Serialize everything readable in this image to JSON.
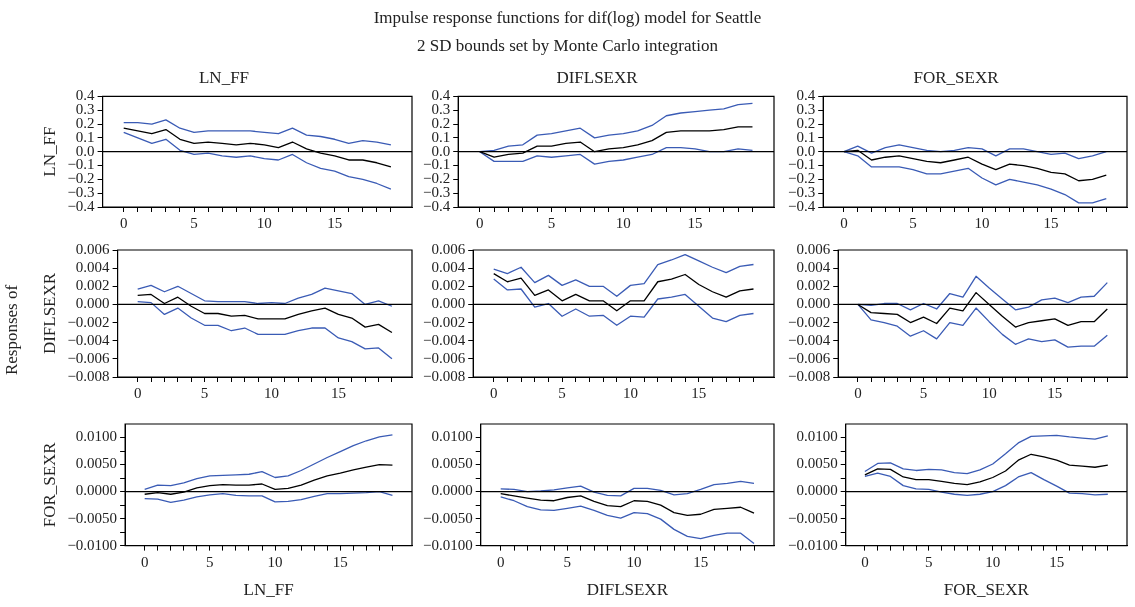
{
  "chart_data": [
    {
      "type": "line",
      "title": "LN_FF",
      "ylabel": "LN_FF",
      "annotations": [
        "Impulse response functions for dif(log) model for Seattle",
        "2 SD bounds set by Monte Carlo integration",
        "Responses of"
      ],
      "x": [
        0,
        1,
        2,
        3,
        4,
        5,
        6,
        7,
        8,
        9,
        10,
        11,
        12,
        13,
        14,
        15,
        16,
        17,
        18,
        19
      ],
      "xlim": [
        -1.5,
        20.5
      ],
      "xticks": [
        0,
        {
          "value": 1,
          "label": null
        },
        {
          "value": 2,
          "label": null
        },
        {
          "value": 3,
          "label": null
        },
        {
          "value": 4,
          "label": null
        },
        5,
        {
          "value": 6,
          "label": null
        },
        {
          "value": 7,
          "label": null
        },
        {
          "value": 8,
          "label": null
        },
        {
          "value": 9,
          "label": null
        },
        10,
        {
          "value": 11,
          "label": null
        },
        {
          "value": 12,
          "label": null
        },
        {
          "value": 13,
          "label": null
        },
        {
          "value": 14,
          "label": null
        },
        15,
        {
          "value": 16,
          "label": null
        },
        {
          "value": 17,
          "label": null
        },
        {
          "value": 18,
          "label": null
        },
        {
          "value": 19,
          "label": null
        }
      ],
      "ylim": [
        -0.4,
        0.4
      ],
      "yticks": [
        {
          "value": -0.4,
          "label": "−0.4"
        },
        {
          "value": -0.3,
          "label": "−0.3"
        },
        {
          "value": -0.2,
          "label": "−0.2"
        },
        {
          "value": -0.1,
          "label": "−0.1"
        },
        {
          "value": 0,
          "label": "0.0"
        },
        0.1,
        0.2,
        0.3,
        0.4
      ],
      "ref_lines": [
        {
          "axis": "y",
          "value": 0,
          "color": "#000000"
        }
      ],
      "series": [
        {
          "color": "#000000",
          "values": [
            0.17,
            0.15,
            0.13,
            0.16,
            0.09,
            0.06,
            0.07,
            0.06,
            0.05,
            0.06,
            0.05,
            0.03,
            0.07,
            0.02,
            -0.01,
            -0.03,
            -0.06,
            -0.06,
            -0.08,
            -0.11
          ]
        },
        {
          "color": "#3a5bb5",
          "values": [
            0.21,
            0.21,
            0.2,
            0.23,
            0.17,
            0.14,
            0.15,
            0.15,
            0.15,
            0.15,
            0.14,
            0.13,
            0.17,
            0.12,
            0.11,
            0.09,
            0.06,
            0.08,
            0.07,
            0.05
          ]
        },
        {
          "color": "#3a5bb5",
          "values": [
            0.14,
            0.1,
            0.06,
            0.09,
            0.01,
            -0.02,
            -0.01,
            -0.03,
            -0.04,
            -0.03,
            -0.05,
            -0.06,
            -0.02,
            -0.08,
            -0.12,
            -0.14,
            -0.18,
            -0.2,
            -0.23,
            -0.27
          ]
        }
      ]
    },
    {
      "type": "line",
      "title": "DIFLSEXR",
      "x": [
        0,
        1,
        2,
        3,
        4,
        5,
        6,
        7,
        8,
        9,
        10,
        11,
        12,
        13,
        14,
        15,
        16,
        17,
        18,
        19
      ],
      "xlim": [
        -1.5,
        20.5
      ],
      "xticks": [
        0,
        {
          "value": 1,
          "label": null
        },
        {
          "value": 2,
          "label": null
        },
        {
          "value": 3,
          "label": null
        },
        {
          "value": 4,
          "label": null
        },
        5,
        {
          "value": 6,
          "label": null
        },
        {
          "value": 7,
          "label": null
        },
        {
          "value": 8,
          "label": null
        },
        {
          "value": 9,
          "label": null
        },
        10,
        {
          "value": 11,
          "label": null
        },
        {
          "value": 12,
          "label": null
        },
        {
          "value": 13,
          "label": null
        },
        {
          "value": 14,
          "label": null
        },
        15,
        {
          "value": 16,
          "label": null
        },
        {
          "value": 17,
          "label": null
        },
        {
          "value": 18,
          "label": null
        },
        {
          "value": 19,
          "label": null
        }
      ],
      "ylim": [
        -0.4,
        0.4
      ],
      "yticks": [
        {
          "value": -0.4,
          "label": "−0.4"
        },
        {
          "value": -0.3,
          "label": "−0.3"
        },
        {
          "value": -0.2,
          "label": "−0.2"
        },
        {
          "value": -0.1,
          "label": "−0.1"
        },
        {
          "value": 0,
          "label": "0.0"
        },
        0.1,
        0.2,
        0.3,
        0.4
      ],
      "ref_lines": [
        {
          "axis": "y",
          "value": 0,
          "color": "#000000"
        }
      ],
      "series": [
        {
          "color": "#000000",
          "values": [
            0,
            -0.04,
            -0.02,
            -0.01,
            0.04,
            0.04,
            0.06,
            0.07,
            0.0,
            0.02,
            0.03,
            0.05,
            0.08,
            0.14,
            0.15,
            0.15,
            0.15,
            0.16,
            0.18,
            0.18
          ]
        },
        {
          "color": "#3a5bb5",
          "values": [
            0,
            0.01,
            0.04,
            0.05,
            0.12,
            0.13,
            0.15,
            0.17,
            0.1,
            0.12,
            0.13,
            0.15,
            0.19,
            0.26,
            0.28,
            0.29,
            0.3,
            0.31,
            0.34,
            0.35
          ]
        },
        {
          "color": "#3a5bb5",
          "values": [
            0,
            -0.07,
            -0.07,
            -0.07,
            -0.03,
            -0.04,
            -0.03,
            -0.02,
            -0.09,
            -0.07,
            -0.06,
            -0.04,
            -0.02,
            0.03,
            0.03,
            0.02,
            0.0,
            0.0,
            0.02,
            0.01
          ]
        }
      ]
    },
    {
      "type": "line",
      "title": "FOR_SEXR",
      "x": [
        0,
        1,
        2,
        3,
        4,
        5,
        6,
        7,
        8,
        9,
        10,
        11,
        12,
        13,
        14,
        15,
        16,
        17,
        18,
        19
      ],
      "xlim": [
        -1.5,
        20.5
      ],
      "xticks": [
        0,
        {
          "value": 1,
          "label": null
        },
        {
          "value": 2,
          "label": null
        },
        {
          "value": 3,
          "label": null
        },
        {
          "value": 4,
          "label": null
        },
        5,
        {
          "value": 6,
          "label": null
        },
        {
          "value": 7,
          "label": null
        },
        {
          "value": 8,
          "label": null
        },
        {
          "value": 9,
          "label": null
        },
        10,
        {
          "value": 11,
          "label": null
        },
        {
          "value": 12,
          "label": null
        },
        {
          "value": 13,
          "label": null
        },
        {
          "value": 14,
          "label": null
        },
        15,
        {
          "value": 16,
          "label": null
        },
        {
          "value": 17,
          "label": null
        },
        {
          "value": 18,
          "label": null
        },
        {
          "value": 19,
          "label": null
        }
      ],
      "ylim": [
        -0.4,
        0.4
      ],
      "yticks": [
        {
          "value": -0.4,
          "label": "−0.4"
        },
        {
          "value": -0.3,
          "label": "−0.3"
        },
        {
          "value": -0.2,
          "label": "−0.2"
        },
        {
          "value": -0.1,
          "label": "−0.1"
        },
        {
          "value": 0,
          "label": "0.0"
        },
        0.1,
        0.2,
        0.3,
        0.4
      ],
      "ref_lines": [
        {
          "axis": "y",
          "value": 0,
          "color": "#000000"
        }
      ],
      "series": [
        {
          "color": "#000000",
          "values": [
            0,
            0.01,
            -0.06,
            -0.04,
            -0.03,
            -0.05,
            -0.07,
            -0.08,
            -0.06,
            -0.04,
            -0.09,
            -0.13,
            -0.09,
            -0.1,
            -0.12,
            -0.15,
            -0.16,
            -0.21,
            -0.2,
            -0.17
          ]
        },
        {
          "color": "#3a5bb5",
          "values": [
            0,
            0.04,
            -0.01,
            0.03,
            0.05,
            0.03,
            0.01,
            0.0,
            0.01,
            0.03,
            0.02,
            -0.03,
            0.02,
            0.02,
            0.0,
            -0.02,
            -0.01,
            -0.05,
            -0.03,
            0.0
          ]
        },
        {
          "color": "#3a5bb5",
          "values": [
            0,
            -0.03,
            -0.11,
            -0.11,
            -0.11,
            -0.13,
            -0.16,
            -0.16,
            -0.14,
            -0.12,
            -0.19,
            -0.24,
            -0.2,
            -0.22,
            -0.24,
            -0.27,
            -0.31,
            -0.37,
            -0.37,
            -0.34
          ]
        }
      ]
    },
    {
      "type": "line",
      "ylabel": "DIFLSEXR",
      "x": [
        0,
        1,
        2,
        3,
        4,
        5,
        6,
        7,
        8,
        9,
        10,
        11,
        12,
        13,
        14,
        15,
        16,
        17,
        18,
        19
      ],
      "xlim": [
        -1.5,
        20.5
      ],
      "xticks": [
        0,
        {
          "value": 1,
          "label": null
        },
        {
          "value": 2,
          "label": null
        },
        {
          "value": 3,
          "label": null
        },
        {
          "value": 4,
          "label": null
        },
        5,
        {
          "value": 6,
          "label": null
        },
        {
          "value": 7,
          "label": null
        },
        {
          "value": 8,
          "label": null
        },
        {
          "value": 9,
          "label": null
        },
        10,
        {
          "value": 11,
          "label": null
        },
        {
          "value": 12,
          "label": null
        },
        {
          "value": 13,
          "label": null
        },
        {
          "value": 14,
          "label": null
        },
        15,
        {
          "value": 16,
          "label": null
        },
        {
          "value": 17,
          "label": null
        },
        {
          "value": 18,
          "label": null
        },
        {
          "value": 19,
          "label": null
        }
      ],
      "ylim": [
        -0.008,
        0.006
      ],
      "yticks": [
        {
          "value": -0.008,
          "label": "−0.008"
        },
        {
          "value": -0.006,
          "label": "−0.006"
        },
        {
          "value": -0.004,
          "label": "−0.004"
        },
        {
          "value": -0.002,
          "label": "−0.002"
        },
        {
          "value": 0,
          "label": "0.000"
        },
        0.002,
        0.004,
        0.006
      ],
      "ref_lines": [
        {
          "axis": "y",
          "value": 0,
          "color": "#000000"
        }
      ],
      "series": [
        {
          "color": "#000000",
          "values": [
            0.001,
            0.0011,
            0.0001,
            0.0008,
            -0.0002,
            -0.001,
            -0.001,
            -0.0013,
            -0.0012,
            -0.0016,
            -0.0016,
            -0.0016,
            -0.0011,
            -0.0007,
            -0.0004,
            -0.0011,
            -0.0015,
            -0.0025,
            -0.0022,
            -0.0031
          ]
        },
        {
          "color": "#3a5bb5",
          "values": [
            0.0017,
            0.0021,
            0.0014,
            0.002,
            0.0012,
            0.0004,
            0.0003,
            0.0003,
            0.0003,
            0.0001,
            0.0002,
            0.0001,
            0.0007,
            0.0011,
            0.0018,
            0.0015,
            0.0012,
            0.0,
            0.0004,
            -0.0002
          ]
        },
        {
          "color": "#3a5bb5",
          "values": [
            0.0003,
            0.0002,
            -0.0011,
            -0.0004,
            -0.0015,
            -0.0023,
            -0.0023,
            -0.0029,
            -0.0026,
            -0.0033,
            -0.0033,
            -0.0033,
            -0.0029,
            -0.0026,
            -0.0026,
            -0.0037,
            -0.0041,
            -0.0049,
            -0.0048,
            -0.006
          ]
        }
      ]
    },
    {
      "type": "line",
      "x": [
        0,
        1,
        2,
        3,
        4,
        5,
        6,
        7,
        8,
        9,
        10,
        11,
        12,
        13,
        14,
        15,
        16,
        17,
        18,
        19
      ],
      "xlim": [
        -1.5,
        20.5
      ],
      "xticks": [
        0,
        {
          "value": 1,
          "label": null
        },
        {
          "value": 2,
          "label": null
        },
        {
          "value": 3,
          "label": null
        },
        {
          "value": 4,
          "label": null
        },
        5,
        {
          "value": 6,
          "label": null
        },
        {
          "value": 7,
          "label": null
        },
        {
          "value": 8,
          "label": null
        },
        {
          "value": 9,
          "label": null
        },
        10,
        {
          "value": 11,
          "label": null
        },
        {
          "value": 12,
          "label": null
        },
        {
          "value": 13,
          "label": null
        },
        {
          "value": 14,
          "label": null
        },
        15,
        {
          "value": 16,
          "label": null
        },
        {
          "value": 17,
          "label": null
        },
        {
          "value": 18,
          "label": null
        },
        {
          "value": 19,
          "label": null
        }
      ],
      "ylim": [
        -0.008,
        0.006
      ],
      "yticks": [
        {
          "value": -0.008,
          "label": "−0.008"
        },
        {
          "value": -0.006,
          "label": "−0.006"
        },
        {
          "value": -0.004,
          "label": "−0.004"
        },
        {
          "value": -0.002,
          "label": "−0.002"
        },
        {
          "value": 0,
          "label": "0.000"
        },
        0.002,
        0.004,
        0.006
      ],
      "ref_lines": [
        {
          "axis": "y",
          "value": 0,
          "color": "#000000"
        }
      ],
      "series": [
        {
          "color": "#000000",
          "values": [
            0.0034,
            0.0025,
            0.0029,
            0.001,
            0.0016,
            0.0004,
            0.0011,
            0.0004,
            0.0004,
            -0.0007,
            0.0004,
            0.0004,
            0.0025,
            0.0028,
            0.0033,
            0.0022,
            0.0014,
            0.0008,
            0.0015,
            0.0017
          ]
        },
        {
          "color": "#3a5bb5",
          "values": [
            0.0039,
            0.0034,
            0.0041,
            0.0024,
            0.0032,
            0.0021,
            0.0027,
            0.002,
            0.002,
            0.0009,
            0.0021,
            0.0023,
            0.0044,
            0.0049,
            0.0055,
            0.0048,
            0.0041,
            0.0035,
            0.0042,
            0.0044
          ]
        },
        {
          "color": "#3a5bb5",
          "values": [
            0.0028,
            0.0016,
            0.0017,
            -0.0003,
            0.0001,
            -0.0013,
            -0.0005,
            -0.0013,
            -0.0012,
            -0.0023,
            -0.0013,
            -0.0014,
            0.0006,
            0.0008,
            0.0011,
            -0.0002,
            -0.0015,
            -0.0019,
            -0.0012,
            -0.001
          ]
        }
      ]
    },
    {
      "type": "line",
      "x": [
        0,
        1,
        2,
        3,
        4,
        5,
        6,
        7,
        8,
        9,
        10,
        11,
        12,
        13,
        14,
        15,
        16,
        17,
        18,
        19
      ],
      "xlim": [
        -1.5,
        20.5
      ],
      "xticks": [
        0,
        {
          "value": 1,
          "label": null
        },
        {
          "value": 2,
          "label": null
        },
        {
          "value": 3,
          "label": null
        },
        {
          "value": 4,
          "label": null
        },
        5,
        {
          "value": 6,
          "label": null
        },
        {
          "value": 7,
          "label": null
        },
        {
          "value": 8,
          "label": null
        },
        {
          "value": 9,
          "label": null
        },
        10,
        {
          "value": 11,
          "label": null
        },
        {
          "value": 12,
          "label": null
        },
        {
          "value": 13,
          "label": null
        },
        {
          "value": 14,
          "label": null
        },
        15,
        {
          "value": 16,
          "label": null
        },
        {
          "value": 17,
          "label": null
        },
        {
          "value": 18,
          "label": null
        },
        {
          "value": 19,
          "label": null
        }
      ],
      "ylim": [
        -0.008,
        0.006
      ],
      "yticks": [
        {
          "value": -0.008,
          "label": "−0.008"
        },
        {
          "value": -0.006,
          "label": "−0.006"
        },
        {
          "value": -0.004,
          "label": "−0.004"
        },
        {
          "value": -0.002,
          "label": "−0.002"
        },
        {
          "value": 0,
          "label": "0.000"
        },
        0.002,
        0.004,
        0.006
      ],
      "ref_lines": [
        {
          "axis": "y",
          "value": 0,
          "color": "#000000"
        }
      ],
      "series": [
        {
          "color": "#000000",
          "values": [
            0,
            -0.0009,
            -0.001,
            -0.0011,
            -0.002,
            -0.0014,
            -0.0021,
            -0.0004,
            -0.0007,
            0.0013,
            0.0,
            -0.0013,
            -0.0025,
            -0.002,
            -0.0018,
            -0.0016,
            -0.0023,
            -0.0019,
            -0.0019,
            -0.0005
          ]
        },
        {
          "color": "#3a5bb5",
          "values": [
            0,
            -0.0001,
            0.0001,
            0.0001,
            -0.0006,
            0.0001,
            -0.0005,
            0.0012,
            0.0008,
            0.0031,
            0.0018,
            0.0006,
            -0.0006,
            -0.0003,
            0.0005,
            0.0007,
            0.0002,
            0.0008,
            0.0009,
            0.0024
          ]
        },
        {
          "color": "#3a5bb5",
          "values": [
            0,
            -0.0017,
            -0.002,
            -0.0024,
            -0.0035,
            -0.0029,
            -0.0038,
            -0.002,
            -0.0023,
            -0.0004,
            -0.0019,
            -0.0033,
            -0.0044,
            -0.0038,
            -0.0041,
            -0.0039,
            -0.0047,
            -0.0046,
            -0.0046,
            -0.0034
          ]
        }
      ]
    },
    {
      "type": "line",
      "ylabel": "FOR_SEXR",
      "xlabel": "LN_FF",
      "x": [
        0,
        1,
        2,
        3,
        4,
        5,
        6,
        7,
        8,
        9,
        10,
        11,
        12,
        13,
        14,
        15,
        16,
        17,
        18,
        19
      ],
      "xlim": [
        -1.5,
        20.5
      ],
      "xticks": [
        0,
        {
          "value": 1,
          "label": null
        },
        {
          "value": 2,
          "label": null
        },
        {
          "value": 3,
          "label": null
        },
        {
          "value": 4,
          "label": null
        },
        5,
        {
          "value": 6,
          "label": null
        },
        {
          "value": 7,
          "label": null
        },
        {
          "value": 8,
          "label": null
        },
        {
          "value": 9,
          "label": null
        },
        10,
        {
          "value": 11,
          "label": null
        },
        {
          "value": 12,
          "label": null
        },
        {
          "value": 13,
          "label": null
        },
        {
          "value": 14,
          "label": null
        },
        15,
        {
          "value": 16,
          "label": null
        },
        {
          "value": 17,
          "label": null
        },
        {
          "value": 18,
          "label": null
        },
        {
          "value": 19,
          "label": null
        }
      ],
      "ylim": [
        -0.01,
        0.0125
      ],
      "yticks": [
        {
          "value": -0.01,
          "label": "−0.0100"
        },
        {
          "value": -0.0075,
          "label": null
        },
        {
          "value": -0.005,
          "label": "−0.0050"
        },
        {
          "value": -0.0025,
          "label": null
        },
        {
          "value": 0,
          "label": "0.0000"
        },
        {
          "value": 0.0025,
          "label": null
        },
        {
          "value": 0.005,
          "label": "0.0050"
        },
        {
          "value": 0.0075,
          "label": null
        },
        {
          "value": 0.01,
          "label": "0.0100"
        }
      ],
      "ref_lines": [
        {
          "axis": "y",
          "value": 0,
          "color": "#000000"
        }
      ],
      "series": [
        {
          "color": "#000000",
          "values": [
            -0.0005,
            -0.0002,
            -0.0005,
            -0.0001,
            0.0007,
            0.0011,
            0.0013,
            0.0012,
            0.0012,
            0.0014,
            0.0004,
            0.0006,
            0.0012,
            0.0021,
            0.0029,
            0.0034,
            0.004,
            0.0045,
            0.005,
            0.0049
          ]
        },
        {
          "color": "#3a5bb5",
          "values": [
            0.0004,
            0.0012,
            0.0011,
            0.0016,
            0.0024,
            0.0029,
            0.003,
            0.0031,
            0.0032,
            0.0037,
            0.0026,
            0.0029,
            0.0039,
            0.0051,
            0.0063,
            0.0074,
            0.0085,
            0.0094,
            0.0101,
            0.0105
          ]
        },
        {
          "color": "#3a5bb5",
          "values": [
            -0.0013,
            -0.0014,
            -0.002,
            -0.0016,
            -0.001,
            -0.0006,
            -0.0004,
            -0.0007,
            -0.0008,
            -0.0008,
            -0.0019,
            -0.0018,
            -0.0015,
            -0.0009,
            -0.0004,
            -0.0004,
            -0.0003,
            -0.0002,
            0.0,
            -0.0007
          ]
        }
      ]
    },
    {
      "type": "line",
      "xlabel": "DIFLSEXR",
      "x": [
        0,
        1,
        2,
        3,
        4,
        5,
        6,
        7,
        8,
        9,
        10,
        11,
        12,
        13,
        14,
        15,
        16,
        17,
        18,
        19
      ],
      "xlim": [
        -1.5,
        20.5
      ],
      "xticks": [
        0,
        {
          "value": 1,
          "label": null
        },
        {
          "value": 2,
          "label": null
        },
        {
          "value": 3,
          "label": null
        },
        {
          "value": 4,
          "label": null
        },
        5,
        {
          "value": 6,
          "label": null
        },
        {
          "value": 7,
          "label": null
        },
        {
          "value": 8,
          "label": null
        },
        {
          "value": 9,
          "label": null
        },
        10,
        {
          "value": 11,
          "label": null
        },
        {
          "value": 12,
          "label": null
        },
        {
          "value": 13,
          "label": null
        },
        {
          "value": 14,
          "label": null
        },
        15,
        {
          "value": 16,
          "label": null
        },
        {
          "value": 17,
          "label": null
        },
        {
          "value": 18,
          "label": null
        },
        {
          "value": 19,
          "label": null
        }
      ],
      "ylim": [
        -0.01,
        0.0125
      ],
      "yticks": [
        {
          "value": -0.01,
          "label": "−0.0100"
        },
        {
          "value": -0.0075,
          "label": null
        },
        {
          "value": -0.005,
          "label": "−0.0050"
        },
        {
          "value": -0.0025,
          "label": null
        },
        {
          "value": 0,
          "label": "0.0000"
        },
        {
          "value": 0.0025,
          "label": null
        },
        {
          "value": 0.005,
          "label": "0.0050"
        },
        {
          "value": 0.0075,
          "label": null
        },
        {
          "value": 0.01,
          "label": "0.0100"
        }
      ],
      "ref_lines": [
        {
          "axis": "y",
          "value": 0,
          "color": "#000000"
        }
      ],
      "series": [
        {
          "color": "#000000",
          "values": [
            -0.0004,
            -0.0008,
            -0.0012,
            -0.0016,
            -0.0017,
            -0.0011,
            -0.0008,
            -0.0018,
            -0.0026,
            -0.0028,
            -0.0017,
            -0.0018,
            -0.0025,
            -0.0039,
            -0.0044,
            -0.0042,
            -0.0033,
            -0.0031,
            -0.0029,
            -0.004
          ]
        },
        {
          "color": "#3a5bb5",
          "values": [
            0.0005,
            0.0004,
            0.0,
            0.0001,
            0.0003,
            0.0007,
            0.001,
            -0.0001,
            -0.0007,
            -0.0008,
            0.0006,
            0.0006,
            0.0002,
            -0.0006,
            -0.0004,
            0.0004,
            0.0013,
            0.0015,
            0.0019,
            0.0015
          ]
        },
        {
          "color": "#3a5bb5",
          "values": [
            -0.001,
            -0.0017,
            -0.0028,
            -0.0034,
            -0.0035,
            -0.0031,
            -0.0027,
            -0.0035,
            -0.0044,
            -0.0049,
            -0.0039,
            -0.0041,
            -0.0051,
            -0.007,
            -0.0083,
            -0.0087,
            -0.0081,
            -0.0077,
            -0.0077,
            -0.0096
          ]
        }
      ]
    },
    {
      "type": "line",
      "xlabel": "FOR_SEXR",
      "x": [
        0,
        1,
        2,
        3,
        4,
        5,
        6,
        7,
        8,
        9,
        10,
        11,
        12,
        13,
        14,
        15,
        16,
        17,
        18,
        19
      ],
      "xlim": [
        -1.5,
        20.5
      ],
      "xticks": [
        0,
        {
          "value": 1,
          "label": null
        },
        {
          "value": 2,
          "label": null
        },
        {
          "value": 3,
          "label": null
        },
        {
          "value": 4,
          "label": null
        },
        5,
        {
          "value": 6,
          "label": null
        },
        {
          "value": 7,
          "label": null
        },
        {
          "value": 8,
          "label": null
        },
        {
          "value": 9,
          "label": null
        },
        10,
        {
          "value": 11,
          "label": null
        },
        {
          "value": 12,
          "label": null
        },
        {
          "value": 13,
          "label": null
        },
        {
          "value": 14,
          "label": null
        },
        15,
        {
          "value": 16,
          "label": null
        },
        {
          "value": 17,
          "label": null
        },
        {
          "value": 18,
          "label": null
        },
        {
          "value": 19,
          "label": null
        }
      ],
      "ylim": [
        -0.01,
        0.0125
      ],
      "yticks": [
        {
          "value": -0.01,
          "label": "−0.0100"
        },
        {
          "value": -0.0075,
          "label": null
        },
        {
          "value": -0.005,
          "label": "−0.0050"
        },
        {
          "value": -0.0025,
          "label": null
        },
        {
          "value": 0,
          "label": "0.0000"
        },
        {
          "value": 0.0025,
          "label": null
        },
        {
          "value": 0.005,
          "label": "0.0050"
        },
        {
          "value": 0.0075,
          "label": null
        },
        {
          "value": 0.01,
          "label": "0.0100"
        }
      ],
      "ref_lines": [
        {
          "axis": "y",
          "value": 0,
          "color": "#000000"
        }
      ],
      "series": [
        {
          "color": "#000000",
          "values": [
            0.0031,
            0.0042,
            0.0041,
            0.0027,
            0.0022,
            0.0022,
            0.0019,
            0.0015,
            0.0013,
            0.0018,
            0.0026,
            0.0038,
            0.0058,
            0.0069,
            0.0064,
            0.0058,
            0.0049,
            0.0047,
            0.0045,
            0.0049
          ]
        },
        {
          "color": "#3a5bb5",
          "values": [
            0.0037,
            0.0052,
            0.0053,
            0.0042,
            0.0039,
            0.0041,
            0.004,
            0.0035,
            0.0033,
            0.004,
            0.0051,
            0.007,
            0.009,
            0.0102,
            0.0103,
            0.0104,
            0.0101,
            0.0099,
            0.0097,
            0.0103
          ]
        },
        {
          "color": "#3a5bb5",
          "values": [
            0.0028,
            0.0034,
            0.0028,
            0.0011,
            0.0005,
            0.0004,
            -0.0001,
            -0.0005,
            -0.0007,
            -0.0005,
            0.0,
            0.0011,
            0.0027,
            0.0035,
            0.0022,
            0.001,
            -0.0003,
            -0.0004,
            -0.0006,
            -0.0005
          ]
        }
      ]
    }
  ]
}
